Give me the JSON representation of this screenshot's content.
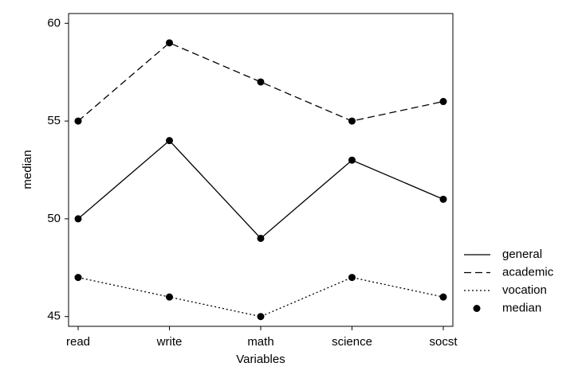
{
  "chart_data": {
    "type": "line",
    "xlabel": "Variables",
    "ylabel": "median",
    "categories": [
      "read",
      "write",
      "math",
      "science",
      "socst"
    ],
    "series": [
      {
        "name": "general",
        "color": "#000000",
        "dash": "solid",
        "values": [
          50,
          54,
          49,
          53,
          51
        ]
      },
      {
        "name": "academic",
        "color": "#000000",
        "dash": "dashed",
        "values": [
          55,
          59,
          57,
          55,
          56
        ]
      },
      {
        "name": "vocation",
        "color": "#000000",
        "dash": "dotted",
        "values": [
          47,
          46,
          45,
          47,
          46
        ]
      }
    ],
    "marker_label": "median",
    "ylim": [
      44.5,
      60.5
    ],
    "yticks": [
      45,
      50,
      55,
      60
    ],
    "grid": false,
    "legend": "right"
  }
}
